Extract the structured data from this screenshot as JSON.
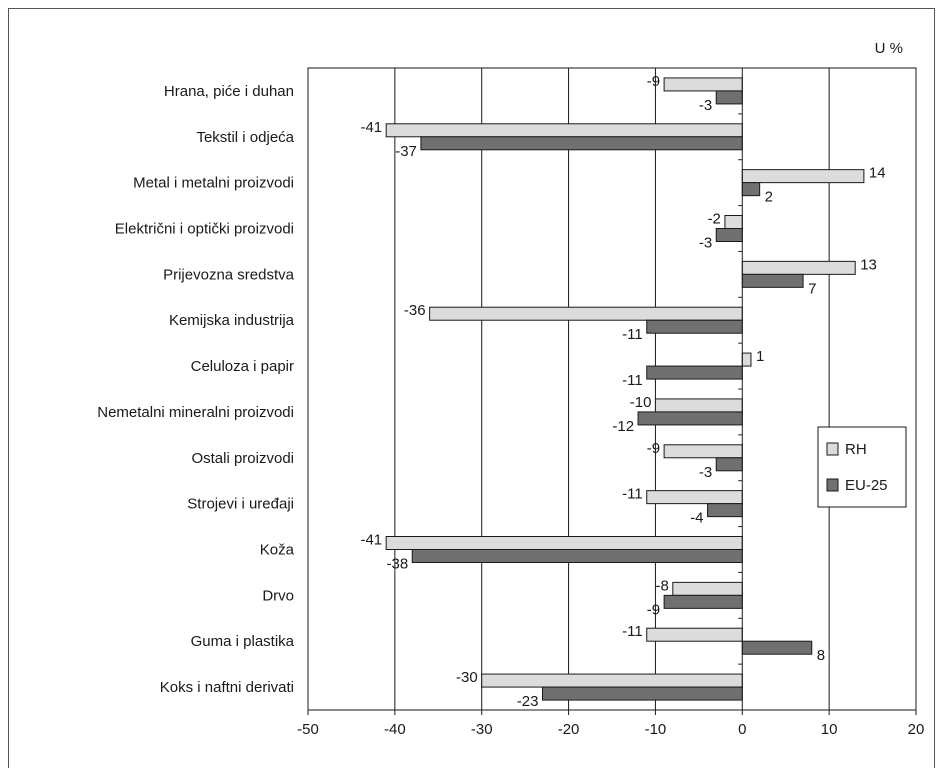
{
  "chart_data": {
    "type": "bar",
    "orientation": "horizontal",
    "unit_label": "U %",
    "categories": [
      "Hrana, piće i duhan",
      "Tekstil i odjeća",
      "Metal i metalni proizvodi",
      "Električni i optički proizvodi",
      "Prijevozna sredstva",
      "Kemijska industrija",
      "Celuloza i papir",
      "Nemetalni mineralni proizvodi",
      "Ostali proizvodi",
      "Strojevi i uređaji",
      "Koža",
      "Drvo",
      "Guma i plastika",
      "Koks i naftni derivati"
    ],
    "series": [
      {
        "name": "RH",
        "color": "#dcdcdc",
        "values": [
          -9,
          -41,
          14,
          -2,
          13,
          -36,
          1,
          -10,
          -9,
          -11,
          -41,
          -8,
          -11,
          -30
        ],
        "labels": [
          "-9",
          "-41",
          "14",
          "-2",
          "13",
          "-36",
          "1",
          "-10",
          "-9",
          "-11",
          "-41",
          "-8",
          "-11",
          "-30"
        ]
      },
      {
        "name": "EU-25",
        "color": "#707070",
        "values": [
          -3,
          -37,
          2,
          -3,
          7,
          -11,
          -11,
          -12,
          -3,
          -4,
          -38,
          -9,
          8,
          -23
        ],
        "labels": [
          "-3",
          "-37",
          "2",
          "-3",
          "7",
          "-11",
          "-11",
          "-12",
          "-3",
          "-4",
          "-38",
          "-9",
          "8",
          "-23"
        ]
      }
    ],
    "xlim": [
      -50,
      20
    ],
    "xticks": [
      -50,
      -40,
      -30,
      -20,
      -10,
      0,
      10,
      20
    ],
    "grid": true,
    "legend": "right"
  }
}
